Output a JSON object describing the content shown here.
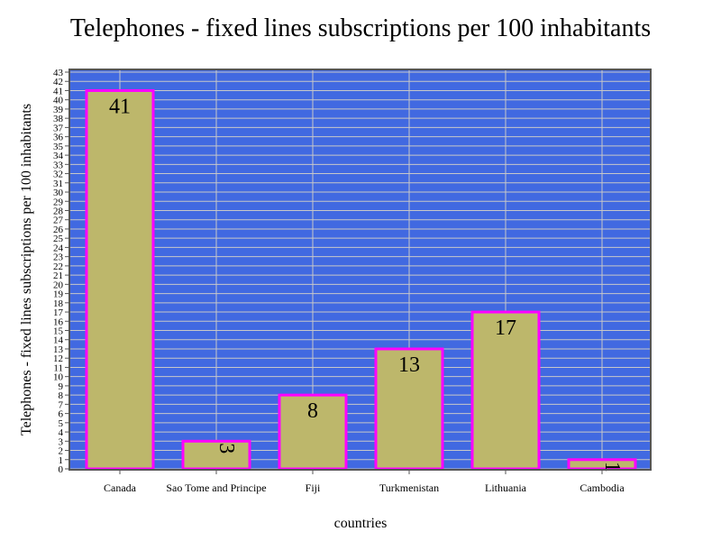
{
  "chart_data": {
    "type": "bar",
    "title": "Telephones - fixed lines subscriptions per 100 inhabitants",
    "xlabel": "countries",
    "ylabel": "Telephones - fixed lines subscriptions per 100 inhabitants",
    "categories": [
      "Canada",
      "Sao Tome and Principe",
      "Fiji",
      "Turkmenistan",
      "Lithuania",
      "Cambodia"
    ],
    "values": [
      41,
      3,
      8,
      13,
      17,
      1
    ],
    "data_labels": [
      "41",
      "3",
      "8",
      "13",
      "17",
      "1"
    ],
    "ylim": [
      0,
      43
    ],
    "y_tick_step": 1,
    "grid": true,
    "legend": "none",
    "colors": {
      "plot_background": "#4169e1",
      "bar_fill": "#bdb76b",
      "bar_stroke": "#ff00ff",
      "grid": "#c8c8c8",
      "frame": "#555555"
    }
  }
}
